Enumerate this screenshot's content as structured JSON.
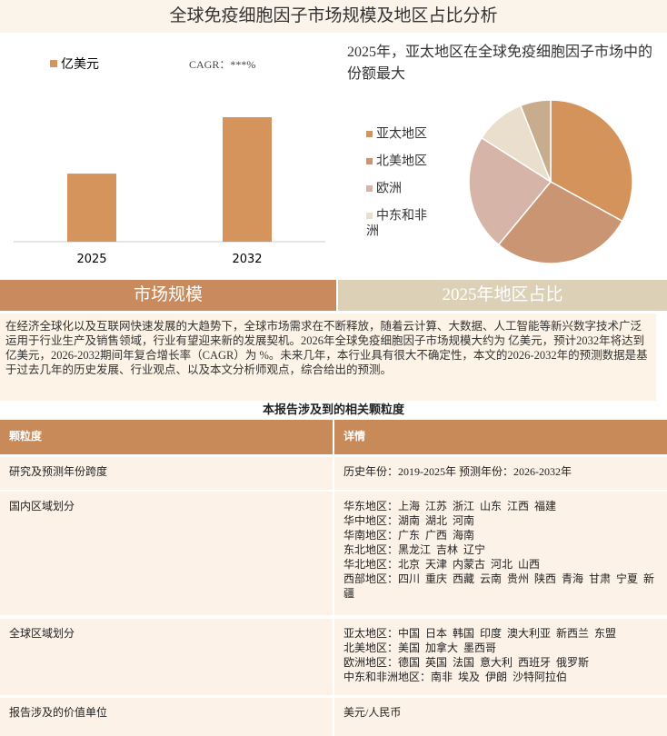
{
  "header": {
    "title": "全球免疫细胞因子市场规模及地区占比分析"
  },
  "chart_data": [
    {
      "type": "bar",
      "series": [
        {
          "name": "亿美元",
          "color": "#d4945c",
          "values": [
            41,
            75
          ]
        }
      ],
      "categories": [
        "2025",
        "2032"
      ],
      "annotation": "CAGR：***%"
    },
    {
      "type": "pie",
      "title": "2025年，亚太地区在全球免疫细胞因子市场中的份额最大",
      "categories": [
        "亚太地区",
        "北美地区",
        "欧洲",
        "中东和非洲",
        null
      ],
      "values": [
        33,
        28,
        23,
        10,
        6
      ],
      "colors": [
        "#d4935a",
        "#c99572",
        "#d6b5a8",
        "#e9dfcc",
        "#c7ac8e"
      ]
    }
  ],
  "sections": [
    "市场规模",
    "2025年地区占比"
  ],
  "paragraph": "在经济全球化以及互联网快速发展的大趋势下，全球市场需求在不断释放，随着云计算、大数据、人工智能等新兴数字技术广泛运用于行业生产及销售领域，行业有望迎来新的发展契机。2026年全球免疫细胞因子市场规模大约为 亿美元，预计2032年将达到 亿美元，2026-2032期间年复合增长率（CAGR）为 %。未来几年，本行业具有很大不确定性，本文的2026-2032年的预测数据是基于过去几年的历史发展、行业观点、以及本文分析师观点，综合给出的预测。",
  "table": {
    "title": "本报告涉及到的相关颗粒度",
    "header": [
      "颗粒度",
      "详情"
    ],
    "rows": [
      [
        "研究及预测年份跨度",
        [
          "历史年份：2019-2025年 预测年份：2026-2032年"
        ]
      ],
      [
        "国内区域划分",
        [
          "华东地区：上海  江苏  浙江  山东  江西  福建",
          "华中地区：湖南  湖北  河南",
          "华南地区：广东  广西  海南",
          "东北地区：黑龙江  吉林  辽宁",
          "华北地区：北京  天津  内蒙古  河北  山西",
          "西部地区：四川  重庆  西藏  云南  贵州  陕西  青海  甘肃  宁夏  新疆"
        ]
      ],
      [
        "全球区域划分",
        [
          "亚太地区：中国  日本  韩国  印度  澳大利亚  新西兰  东盟",
          "北美地区：美国  加拿大  墨西哥",
          "欧洲地区：德国  英国  法国  意大利  西班牙  俄罗斯",
          "中东和非洲地区：南非  埃及  伊朗  沙特阿拉伯"
        ]
      ],
      [
        "报告涉及的价值单位",
        [
          "美元/人民币"
        ]
      ]
    ]
  }
}
